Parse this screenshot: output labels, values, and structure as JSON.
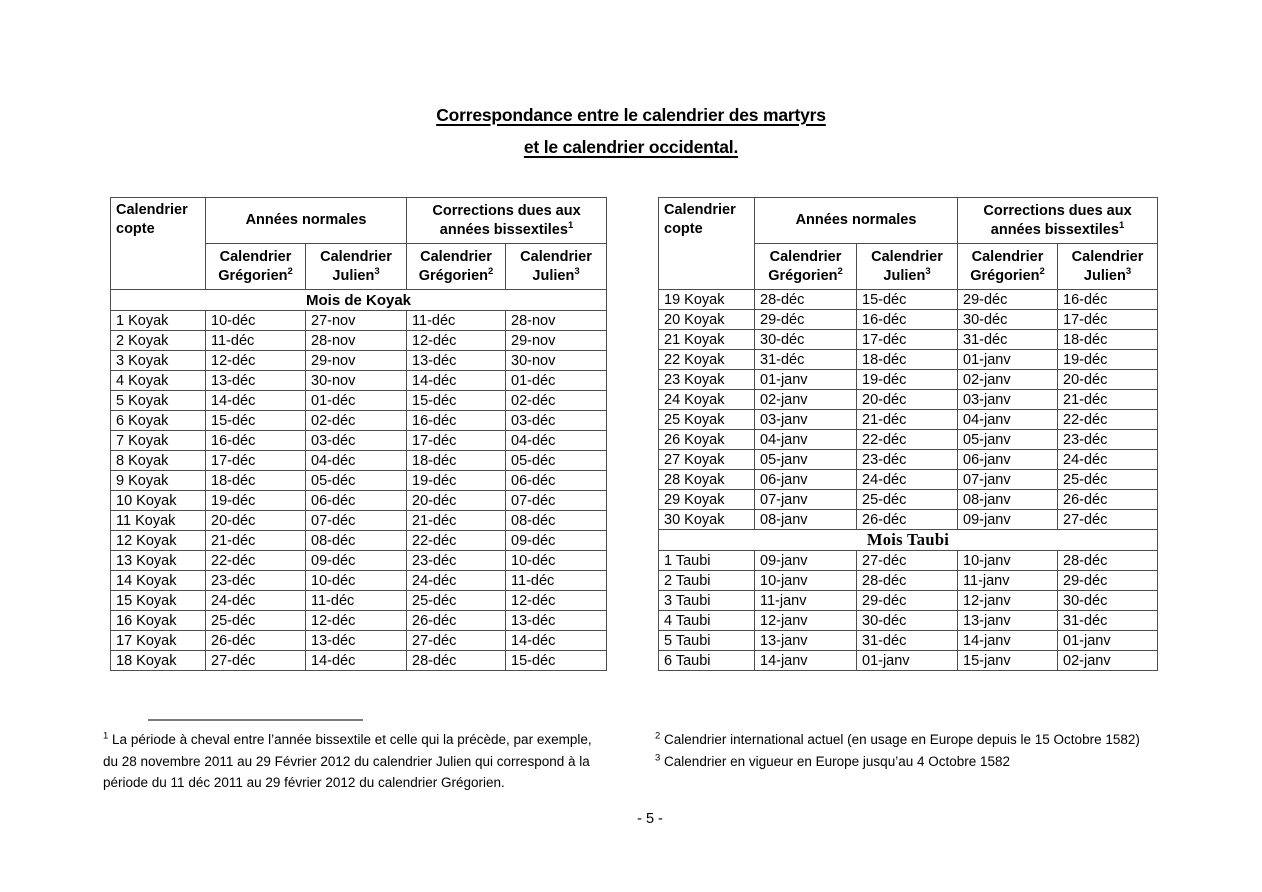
{
  "title": {
    "line1": "Correspondance entre le calendrier des martyrs",
    "line2": "et le calendrier occidental."
  },
  "table_header": {
    "coptic_calendar": "Calendrier copte",
    "normal_years": "Années normales",
    "corrections_line1": "Corrections dues aux",
    "corrections_line2": "années bissextiles",
    "corrections_footnote_ref": "1",
    "calendrier": "Calendrier",
    "gregorien": "Grégorien",
    "gregorien_footnote_ref": "2",
    "julien": "Julien",
    "julien_footnote_ref": "3"
  },
  "left_table": {
    "section": "Mois de Koyak",
    "rows": [
      [
        "1 Koyak",
        "10-déc",
        "27-nov",
        "11-déc",
        "28-nov"
      ],
      [
        "2 Koyak",
        "11-déc",
        "28-nov",
        "12-déc",
        "29-nov"
      ],
      [
        "3 Koyak",
        "12-déc",
        "29-nov",
        "13-déc",
        "30-nov"
      ],
      [
        "4 Koyak",
        "13-déc",
        "30-nov",
        "14-déc",
        "01-déc"
      ],
      [
        "5 Koyak",
        "14-déc",
        "01-déc",
        "15-déc",
        "02-déc"
      ],
      [
        "6 Koyak",
        "15-déc",
        "02-déc",
        "16-déc",
        "03-déc"
      ],
      [
        "7 Koyak",
        "16-déc",
        "03-déc",
        "17-déc",
        "04-déc"
      ],
      [
        "8 Koyak",
        "17-déc",
        "04-déc",
        "18-déc",
        "05-déc"
      ],
      [
        "9 Koyak",
        "18-déc",
        "05-déc",
        "19-déc",
        "06-déc"
      ],
      [
        "10 Koyak",
        "19-déc",
        "06-déc",
        "20-déc",
        "07-déc"
      ],
      [
        "11 Koyak",
        "20-déc",
        "07-déc",
        "21-déc",
        "08-déc"
      ],
      [
        "12 Koyak",
        "21-déc",
        "08-déc",
        "22-déc",
        "09-déc"
      ],
      [
        "13 Koyak",
        "22-déc",
        "09-déc",
        "23-déc",
        "10-déc"
      ],
      [
        "14 Koyak",
        "23-déc",
        "10-déc",
        "24-déc",
        "11-déc"
      ],
      [
        "15 Koyak",
        "24-déc",
        "11-déc",
        "25-déc",
        "12-déc"
      ],
      [
        "16 Koyak",
        "25-déc",
        "12-déc",
        "26-déc",
        "13-déc"
      ],
      [
        "17 Koyak",
        "26-déc",
        "13-déc",
        "27-déc",
        "14-déc"
      ],
      [
        "18 Koyak",
        "27-déc",
        "14-déc",
        "28-déc",
        "15-déc"
      ]
    ]
  },
  "right_table": {
    "koyak_rows": [
      [
        "19 Koyak",
        "28-déc",
        "15-déc",
        "29-déc",
        "16-déc"
      ],
      [
        "20 Koyak",
        "29-déc",
        "16-déc",
        "30-déc",
        "17-déc"
      ],
      [
        "21 Koyak",
        "30-déc",
        "17-déc",
        "31-déc",
        "18-déc"
      ],
      [
        "22 Koyak",
        "31-déc",
        "18-déc",
        "01-janv",
        "19-déc"
      ],
      [
        "23 Koyak",
        "01-janv",
        "19-déc",
        "02-janv",
        "20-déc"
      ],
      [
        "24 Koyak",
        "02-janv",
        "20-déc",
        "03-janv",
        "21-déc"
      ],
      [
        "25 Koyak",
        "03-janv",
        "21-déc",
        "04-janv",
        "22-déc"
      ],
      [
        "26 Koyak",
        "04-janv",
        "22-déc",
        "05-janv",
        "23-déc"
      ],
      [
        "27 Koyak",
        "05-janv",
        "23-déc",
        "06-janv",
        "24-déc"
      ],
      [
        "28 Koyak",
        "06-janv",
        "24-déc",
        "07-janv",
        "25-déc"
      ],
      [
        "29 Koyak",
        "07-janv",
        "25-déc",
        "08-janv",
        "26-déc"
      ],
      [
        "30 Koyak",
        "08-janv",
        "26-déc",
        "09-janv",
        "27-déc"
      ]
    ],
    "section": "Mois Taubi",
    "taubi_rows": [
      [
        "1 Taubi",
        "09-janv",
        "27-déc",
        "10-janv",
        "28-déc"
      ],
      [
        "2 Taubi",
        "10-janv",
        "28-déc",
        "11-janv",
        "29-déc"
      ],
      [
        "3 Taubi",
        "11-janv",
        "29-déc",
        "12-janv",
        "30-déc"
      ],
      [
        "4 Taubi",
        "12-janv",
        "30-déc",
        "13-janv",
        "31-déc"
      ],
      [
        "5 Taubi",
        "13-janv",
        "31-déc",
        "14-janv",
        "01-janv"
      ],
      [
        "6 Taubi",
        "14-janv",
        "01-janv",
        "15-janv",
        "02-janv"
      ]
    ]
  },
  "footnotes": {
    "fn1": {
      "marker": "1",
      "text": " La période à cheval entre l’année bissextile et celle qui la précède, par exemple,\ndu 28 novembre 2011 au 29 Février 2012 du calendrier Julien qui correspond à la\npériode du 11 déc 2011 au 29 février 2012 du calendrier Grégorien."
    },
    "fn2": {
      "marker": "2",
      "text": " Calendrier international actuel (en usage en Europe depuis le 15 Octobre 1582)"
    },
    "fn3": {
      "marker": "3",
      "text": " Calendrier en vigueur en Europe jusqu’au 4 Octobre 1582"
    }
  },
  "page_number": "- 5 -",
  "colors": {
    "text": "#000000",
    "table_border": "#4d4d4d",
    "footnote_rule": "#7a7a7a",
    "background": "#ffffff"
  }
}
